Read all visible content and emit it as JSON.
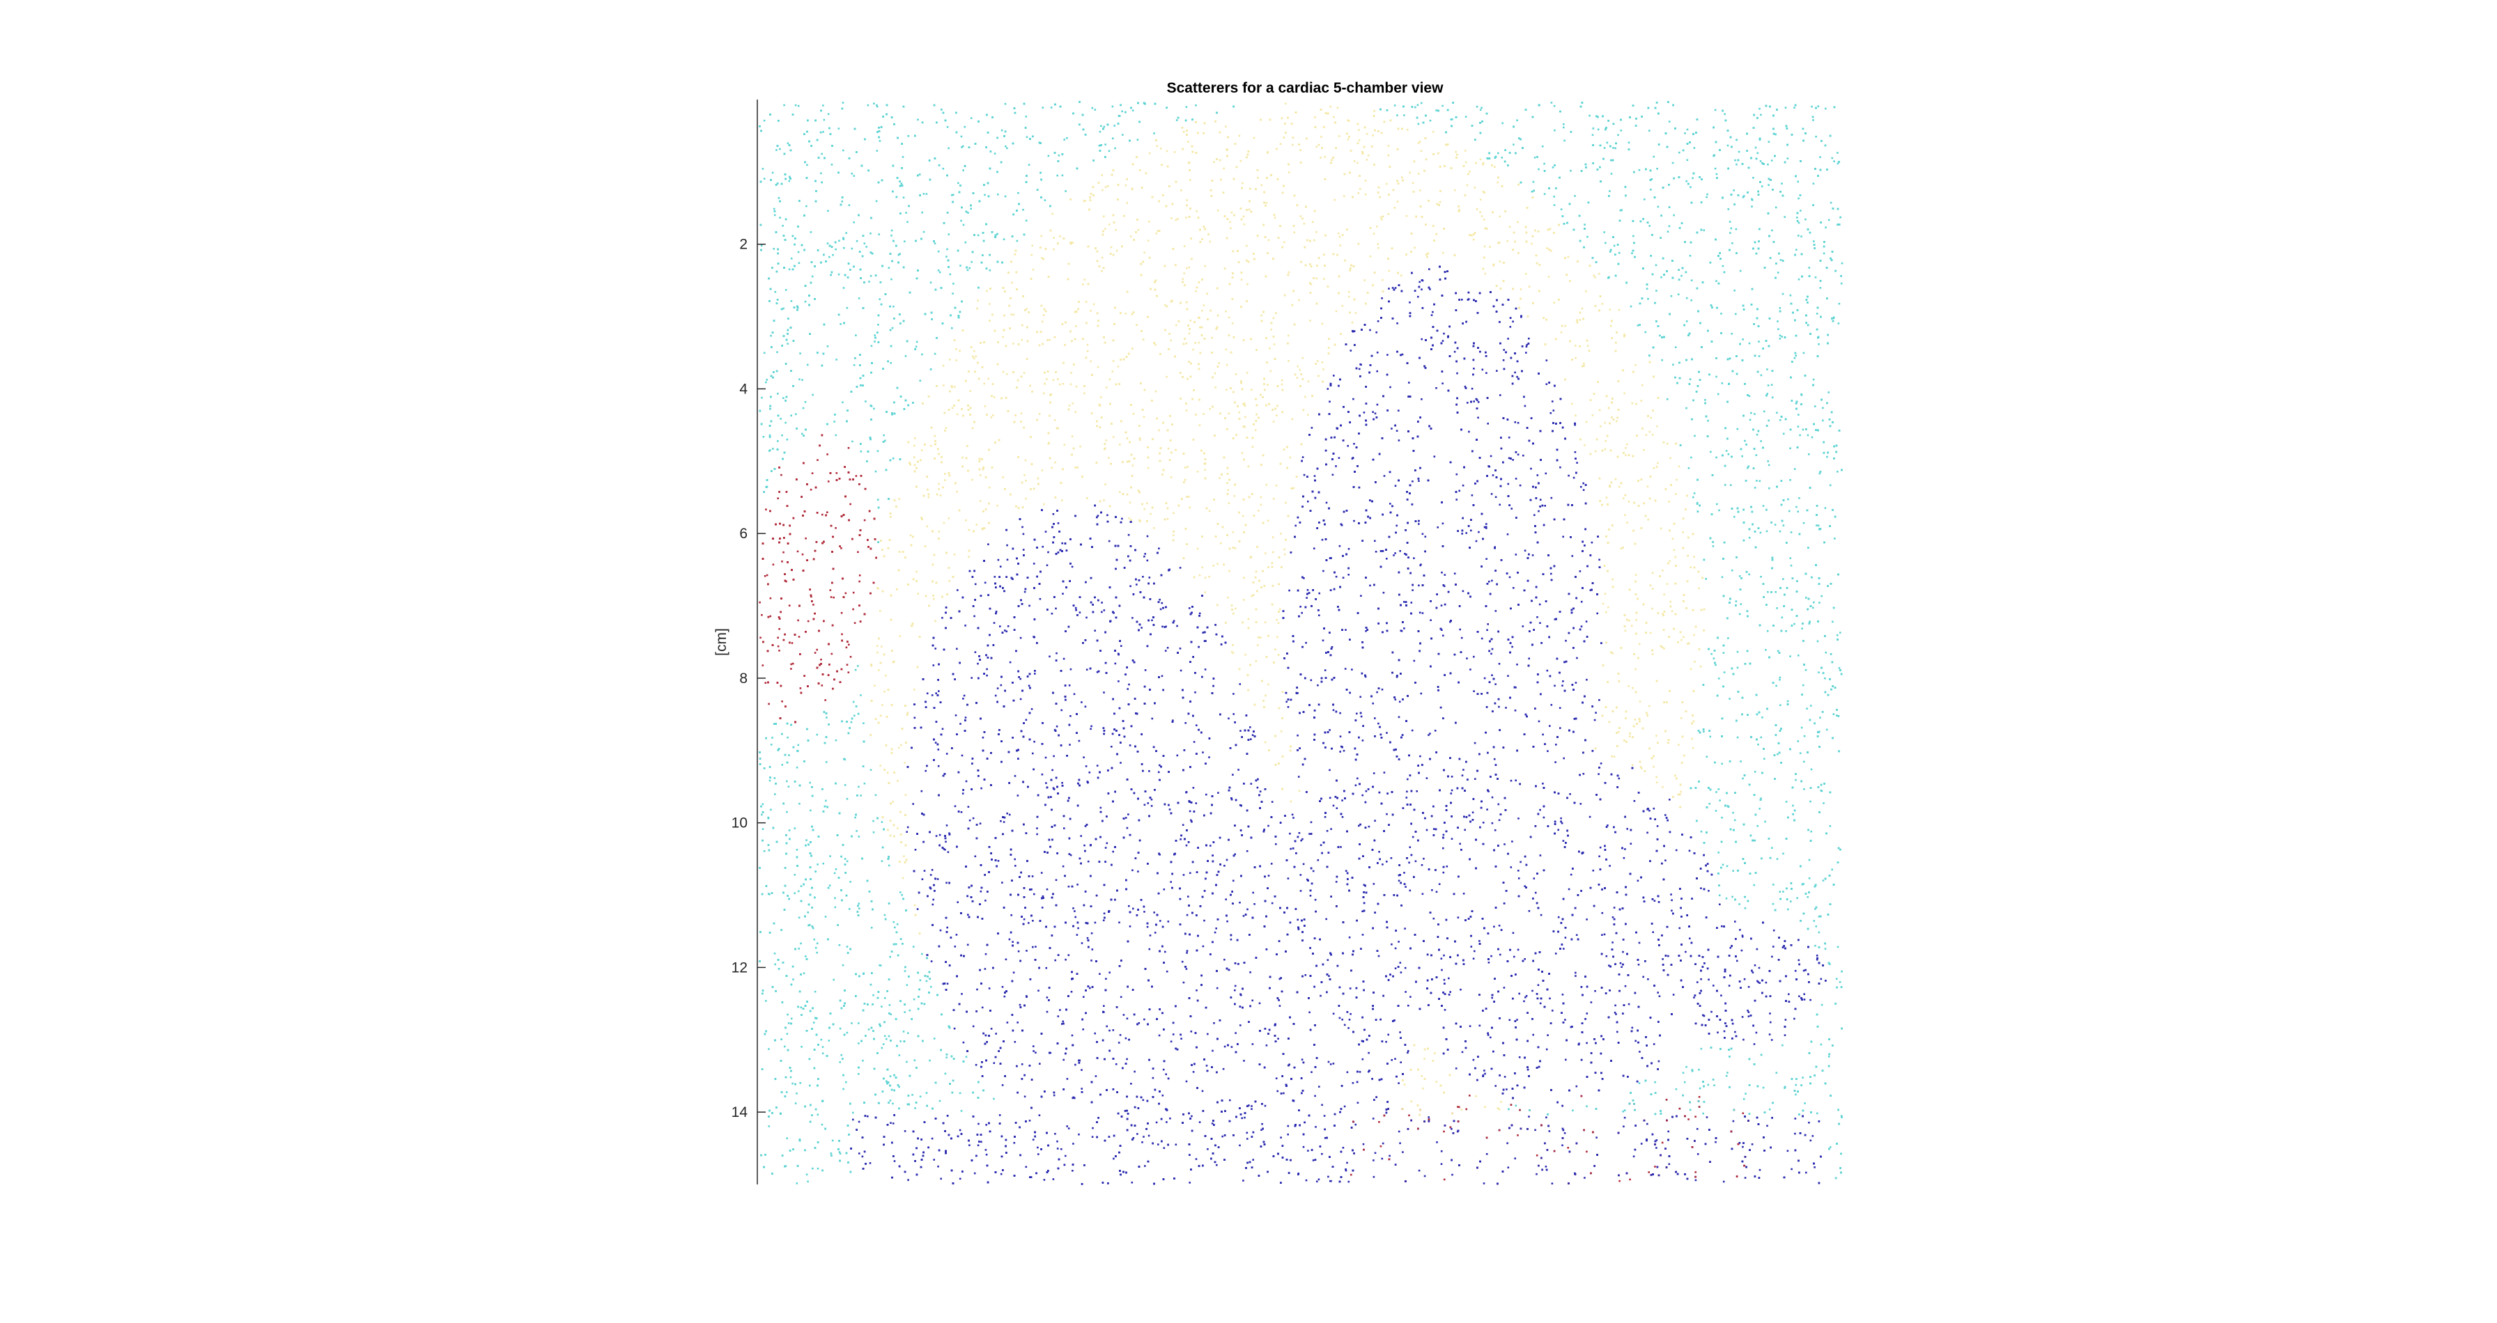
{
  "chart_data": {
    "type": "scatter",
    "title": "Scatterers for a cardiac 5-chamber view",
    "xlabel": "",
    "ylabel": "[cm]",
    "ylim": [
      0,
      15
    ],
    "y_reversed": true,
    "y_ticks": [
      2,
      4,
      6,
      8,
      10,
      12,
      14
    ],
    "y_tick_labels": [
      "2",
      "4",
      "6",
      "8",
      "10",
      "12",
      "14"
    ],
    "x_ticks": [],
    "grid": false,
    "legend": "none",
    "colormap_samples": {
      "outside_tissue": "#5fd3d3",
      "myocardium_wall": "#f4e8a8",
      "blood_cavity": "#2b2bb0",
      "dense_region": "#b02b3a"
    }
  }
}
